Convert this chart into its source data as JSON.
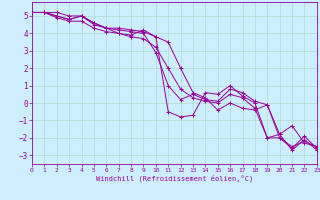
{
  "xlabel": "Windchill (Refroidissement éolien,°C)",
  "bg_color": "#cceeff",
  "line_color": "#990099",
  "grid_color": "#aaddcc",
  "xlim": [
    0,
    23
  ],
  "ylim": [
    -3.5,
    5.8
  ],
  "yticks": [
    -3,
    -2,
    -1,
    0,
    1,
    2,
    3,
    4,
    5
  ],
  "xticks": [
    0,
    1,
    2,
    3,
    4,
    5,
    6,
    7,
    8,
    9,
    10,
    11,
    12,
    13,
    14,
    15,
    16,
    17,
    18,
    19,
    20,
    21,
    22,
    23
  ],
  "series": [
    [
      5.2,
      5.2,
      5.0,
      4.8,
      5.0,
      4.6,
      4.3,
      4.2,
      4.1,
      4.0,
      2.9,
      1.0,
      0.2,
      0.5,
      0.2,
      0.1,
      0.8,
      0.6,
      0.1,
      -0.1,
      -2.0,
      -2.5,
      -2.2,
      -2.5
    ],
    [
      5.2,
      5.2,
      5.2,
      5.0,
      5.0,
      4.5,
      4.3,
      4.3,
      4.2,
      4.1,
      3.8,
      3.5,
      2.0,
      0.6,
      0.3,
      -0.4,
      0.0,
      -0.3,
      -0.4,
      -0.1,
      -1.8,
      -1.3,
      -2.3,
      -2.5
    ],
    [
      5.2,
      5.2,
      4.9,
      4.7,
      4.7,
      4.3,
      4.1,
      4.0,
      3.9,
      4.2,
      3.8,
      -0.5,
      -0.8,
      -0.7,
      0.6,
      0.5,
      1.0,
      0.4,
      -0.0,
      -2.0,
      -2.0,
      -2.6,
      -1.9,
      -2.6
    ],
    [
      5.2,
      5.2,
      5.0,
      4.8,
      5.0,
      4.6,
      4.3,
      4.0,
      3.8,
      3.7,
      3.2,
      2.0,
      0.8,
      0.3,
      0.1,
      0.0,
      0.5,
      0.3,
      -0.3,
      -2.0,
      -1.8,
      -2.7,
      -2.1,
      -2.7
    ]
  ]
}
